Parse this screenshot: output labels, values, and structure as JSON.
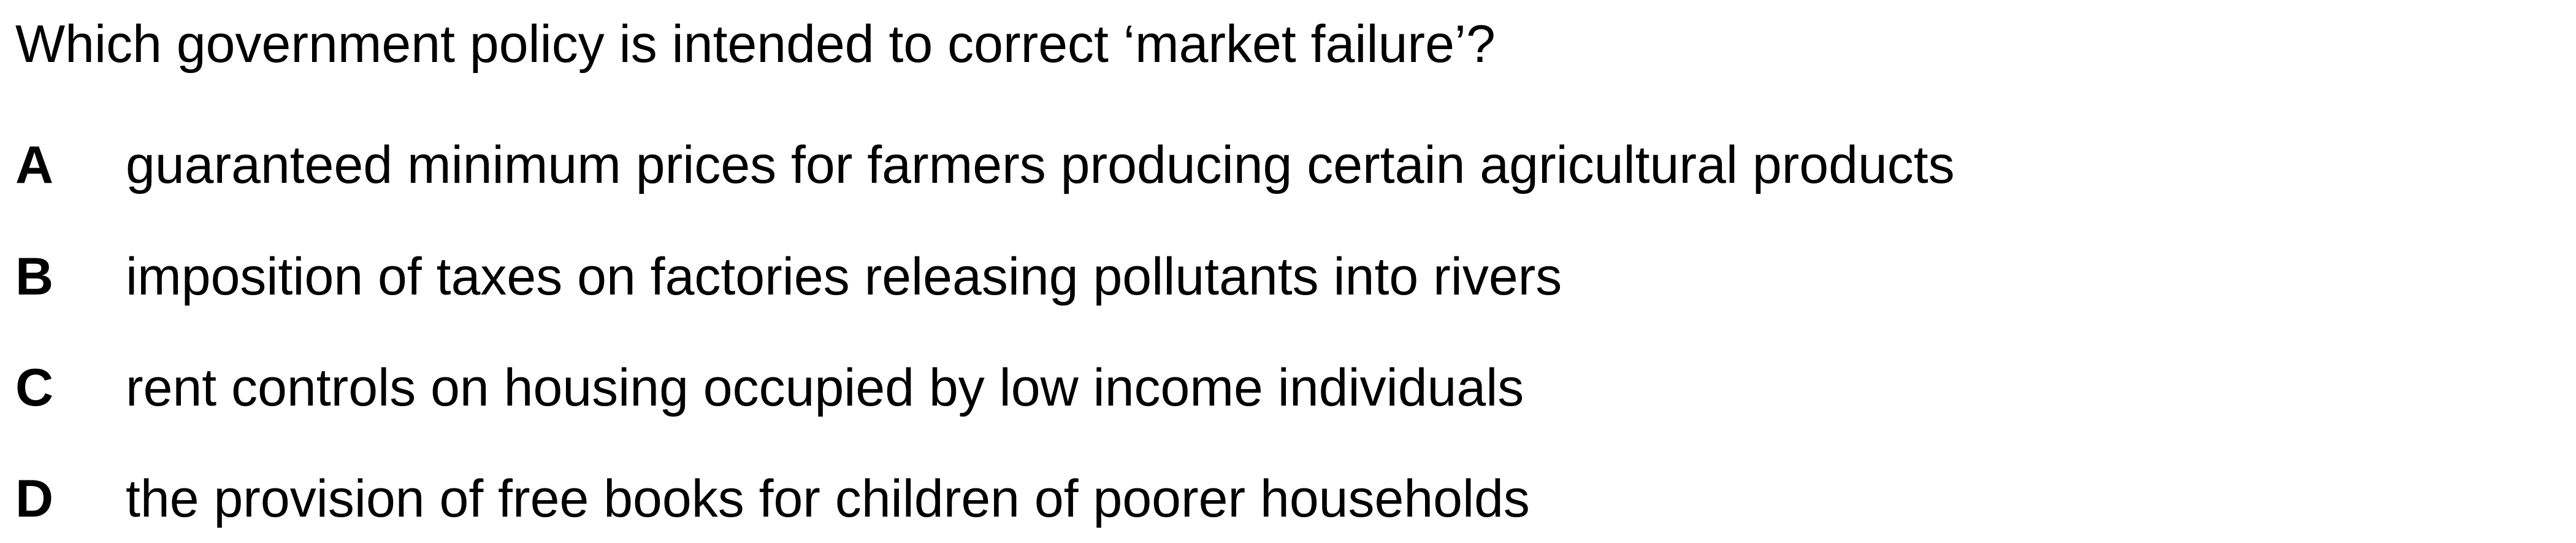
{
  "question": {
    "text": "Which government policy is intended to correct ‘market failure’?"
  },
  "options": [
    {
      "letter": "A",
      "text": "guaranteed minimum prices for farmers producing certain agricultural products"
    },
    {
      "letter": "B",
      "text": "imposition of taxes on factories releasing pollutants into rivers"
    },
    {
      "letter": "C",
      "text": "rent controls on housing occupied by low income individuals"
    },
    {
      "letter": "D",
      "text": "the provision of free books for children of poorer households"
    }
  ]
}
